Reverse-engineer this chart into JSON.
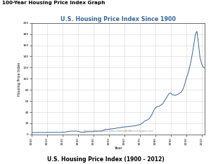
{
  "title": "U.S. Housing Price Index Since 1900",
  "subtitle": "100-Year Housing Price Index Graph",
  "caption": "U.S. Housing Price Index (1900 - 2012)",
  "xlabel": "Year",
  "ylabel": "Housing Price Index",
  "source_text": "Source: Observations (ObservationsAndNotes.blogspot.com)",
  "line_color": "#336699",
  "fig_bg_color": "#ffffff",
  "plot_bg_color": "#ffffff",
  "grid_color": "#cccccc",
  "xlim": [
    1900,
    2012
  ],
  "ylim": [
    0,
    200
  ],
  "yticks": [
    0,
    20,
    40,
    60,
    80,
    100,
    120,
    140,
    160,
    180,
    200
  ],
  "xticks": [
    1900,
    1910,
    1920,
    1930,
    1940,
    1950,
    1960,
    1970,
    1980,
    1990,
    2000,
    2010
  ],
  "years": [
    1900,
    1901,
    1902,
    1903,
    1904,
    1905,
    1906,
    1907,
    1908,
    1909,
    1910,
    1911,
    1912,
    1913,
    1914,
    1915,
    1916,
    1917,
    1918,
    1919,
    1920,
    1921,
    1922,
    1923,
    1924,
    1925,
    1926,
    1927,
    1928,
    1929,
    1930,
    1931,
    1932,
    1933,
    1934,
    1935,
    1936,
    1937,
    1938,
    1939,
    1940,
    1941,
    1942,
    1943,
    1944,
    1945,
    1946,
    1947,
    1948,
    1949,
    1950,
    1951,
    1952,
    1953,
    1954,
    1955,
    1956,
    1957,
    1958,
    1959,
    1960,
    1961,
    1962,
    1963,
    1964,
    1965,
    1966,
    1967,
    1968,
    1969,
    1970,
    1971,
    1972,
    1973,
    1974,
    1975,
    1976,
    1977,
    1978,
    1979,
    1980,
    1981,
    1982,
    1983,
    1984,
    1985,
    1986,
    1987,
    1988,
    1989,
    1990,
    1991,
    1992,
    1993,
    1994,
    1995,
    1996,
    1997,
    1998,
    1999,
    2000,
    2001,
    2002,
    2003,
    2004,
    2005,
    2006,
    2007,
    2008,
    2009,
    2010,
    2011,
    2012
  ],
  "values": [
    3.5,
    3.5,
    3.4,
    3.4,
    3.5,
    3.6,
    3.7,
    3.6,
    3.5,
    3.6,
    3.7,
    3.6,
    3.7,
    3.8,
    3.7,
    3.7,
    3.9,
    3.7,
    3.6,
    3.8,
    4.2,
    3.9,
    4.5,
    5.2,
    5.5,
    5.9,
    6.2,
    6.0,
    6.1,
    6.2,
    5.7,
    4.9,
    4.2,
    3.9,
    4.2,
    4.5,
    4.9,
    5.2,
    5.1,
    5.2,
    5.4,
    5.7,
    5.9,
    6.0,
    6.0,
    6.1,
    6.9,
    8.2,
    9.2,
    9.1,
    9.5,
    9.9,
    10.2,
    10.5,
    10.7,
    11.5,
    11.9,
    12.2,
    12.7,
    13.2,
    13.5,
    13.7,
    14.0,
    14.5,
    14.7,
    15.0,
    15.2,
    15.5,
    16.5,
    17.2,
    17.7,
    19.2,
    21.2,
    23.7,
    25.2,
    26.2,
    28.2,
    31.7,
    36.7,
    42.7,
    47.5,
    49.5,
    50.0,
    51.5,
    53.5,
    55.5,
    60.5,
    64.5,
    69.5,
    73.5,
    74.5,
    71.5,
    70.5,
    70.0,
    71.5,
    72.5,
    74.5,
    76.5,
    81.5,
    89.5,
    99.5,
    107.5,
    117.5,
    129.5,
    144.5,
    161.5,
    180.0,
    185.0,
    162.0,
    138.0,
    127.0,
    121.0,
    119.0
  ]
}
